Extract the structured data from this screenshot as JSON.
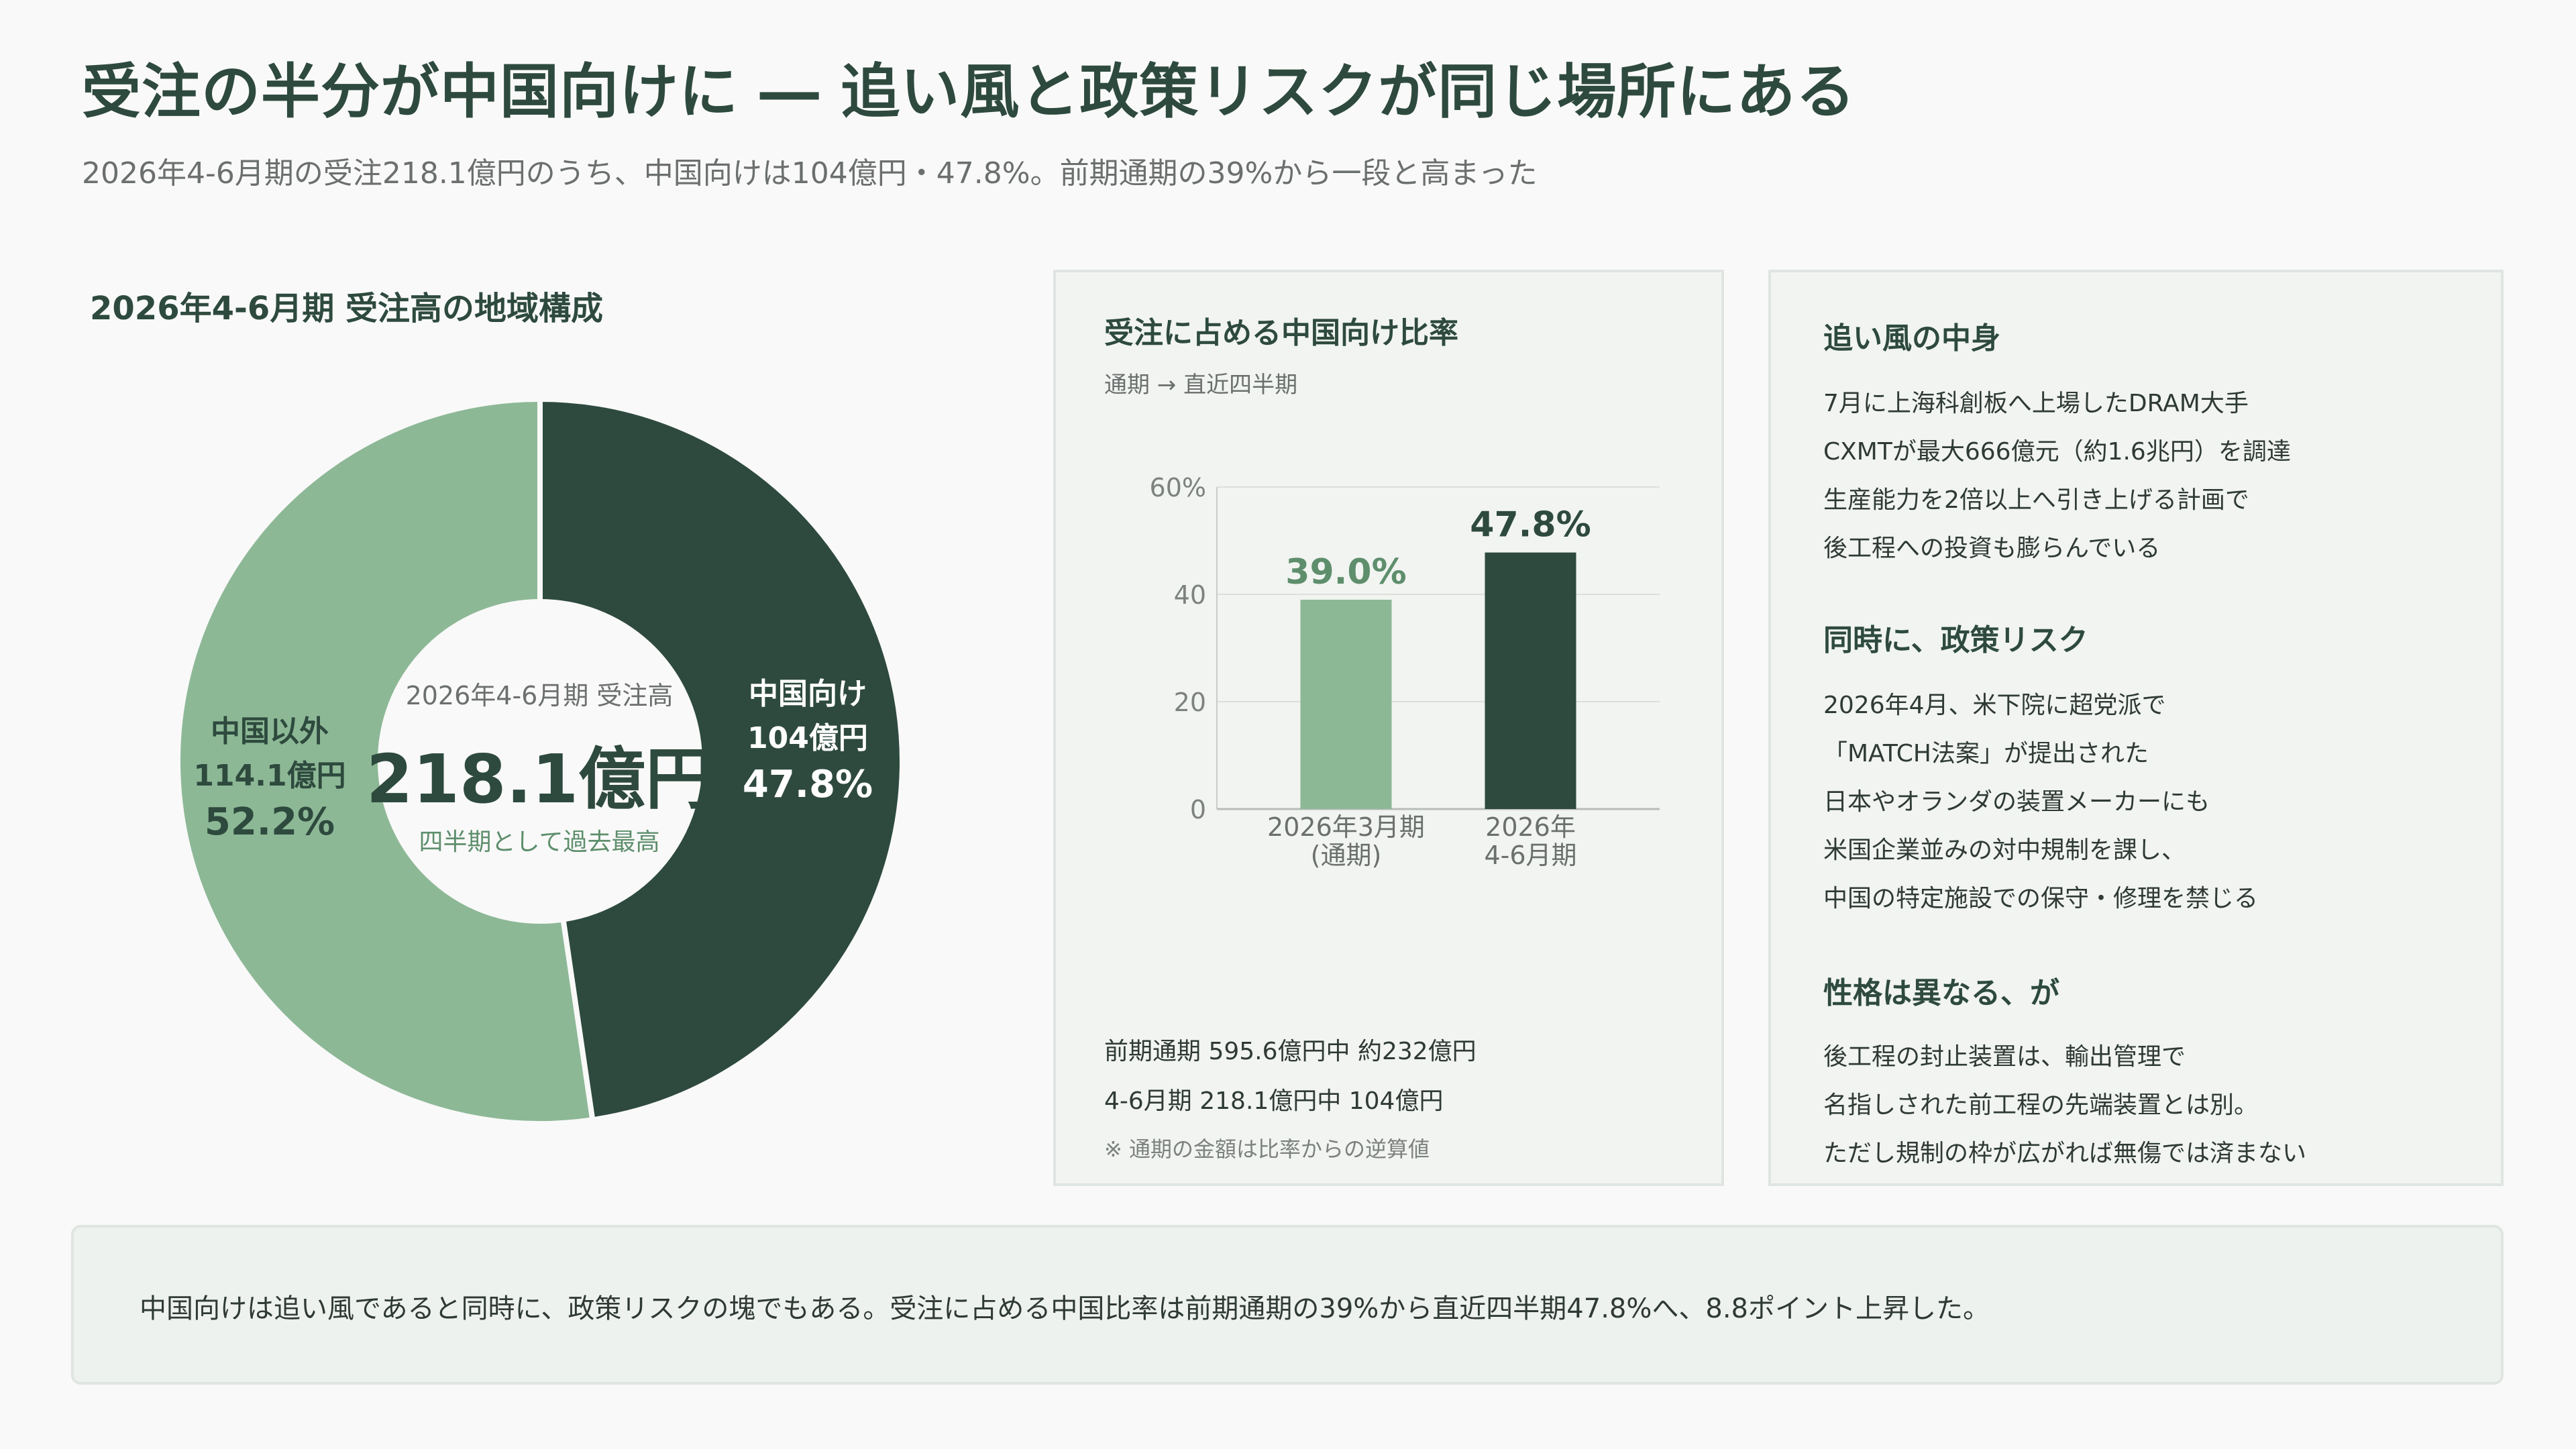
{
  "header": {
    "title": "受注の半分が中国向けに ― 追い風と政策リスクが同じ場所にある",
    "subtitle": "2026年4-6月期の受注218.1億円のうち、中国向けは104億円・47.8%。前期通期の39%から一段と高まった"
  },
  "donut": {
    "title": "2026年4-6月期 受注高の地域構成",
    "center_label": "2026年4-6月期 受注高",
    "center_value": "218.1億円",
    "center_note": "四半期として過去最高",
    "segments": [
      {
        "name": "中国向け",
        "amount": "104億円",
        "pct_label": "47.8%"
      },
      {
        "name": "中国以外",
        "amount": "114.1億円",
        "pct_label": "52.2%"
      }
    ]
  },
  "bar_panel": {
    "title": "受注に占める中国向け比率",
    "subtitle": "通期 → 直近四半期",
    "footnote1": "前期通期 595.6億円中 約232億円",
    "footnote2": "4-6月期 218.1億円中 104億円",
    "note": "※ 通期の金額は比率からの逆算値"
  },
  "text_panel": {
    "section1": {
      "title": "追い風の中身",
      "lines": [
        "7月に上海科創板へ上場したDRAM大手",
        "CXMTが最大666億元（約1.6兆円）を調達",
        "生産能力を2倍以上へ引き上げる計画で",
        "後工程への投資も膨らんでいる"
      ]
    },
    "section2": {
      "title": "同時に、政策リスク",
      "lines": [
        "2026年4月、米下院に超党派で",
        "「MATCH法案」が提出された",
        "日本やオランダの装置メーカーにも",
        "米国企業並みの対中規制を課し、",
        "中国の特定施設での保守・修理を禁じる"
      ]
    },
    "section3": {
      "title": "性格は異なる、が",
      "lines": [
        "後工程の封止装置は、輸出管理で",
        "名指しされた前工程の先端装置とは別。",
        "ただし規制の枠が広がれば無傷では済まない"
      ]
    }
  },
  "footer": {
    "text": "中国向けは追い風であると同時に、政策リスクの塊でもある。受注に占める中国比率は前期通期の39%から直近四半期47.8%へ、8.8ポイント上昇した。"
  },
  "colors": {
    "dark_green": "#2e4a3e",
    "light_green": "#8db896",
    "accent_text_green": "#5e8e6c"
  },
  "chart_data": [
    {
      "type": "pie",
      "title": "2026年4-6月期 受注高の地域構成",
      "categories": [
        "中国向け",
        "中国以外"
      ],
      "values": [
        104,
        114.1
      ],
      "unit": "億円",
      "percent": [
        47.8,
        52.2
      ],
      "colors": [
        "#2e4a3e",
        "#8db896"
      ]
    },
    {
      "type": "bar",
      "title": "受注に占める中国向け比率",
      "categories": [
        "2026年3月期\n(通期)",
        "2026年\n4-6月期"
      ],
      "values": [
        39.0,
        47.8
      ],
      "value_labels": [
        "39.0%",
        "47.8%"
      ],
      "colors": [
        "#8db896",
        "#2e4a3e"
      ],
      "ylim": [
        0,
        60
      ],
      "yticks": [
        0,
        20,
        40,
        60
      ],
      "ytick_labels": [
        "0",
        "20",
        "40",
        "60%"
      ],
      "grid": true
    }
  ]
}
